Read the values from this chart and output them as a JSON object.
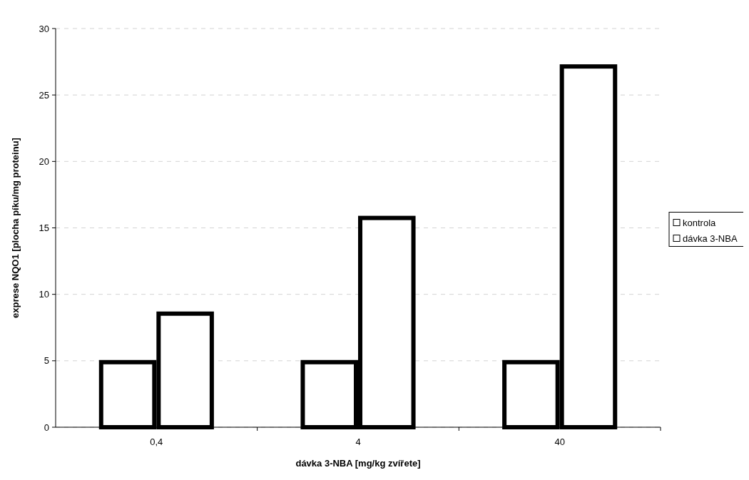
{
  "chart_data": {
    "type": "bar",
    "xlabel": "dávka 3-NBA [mg/kg zvířete]",
    "ylabel": "exprese NQO1 [plocha píku/mg proteinu]",
    "categories": [
      "0,4",
      "4",
      "40"
    ],
    "series": [
      {
        "name": "kontrola",
        "color": "#ffffff",
        "values": [
          4.95,
          4.95,
          4.95
        ]
      },
      {
        "name": "dávka 3-NBA",
        "color": "#ffffff",
        "values": [
          8.6,
          15.8,
          27.2
        ]
      }
    ],
    "ylim": [
      0,
      30
    ],
    "yticks": [
      0,
      5,
      10,
      15,
      20,
      25,
      30
    ],
    "grid": "y",
    "legend": "right"
  }
}
